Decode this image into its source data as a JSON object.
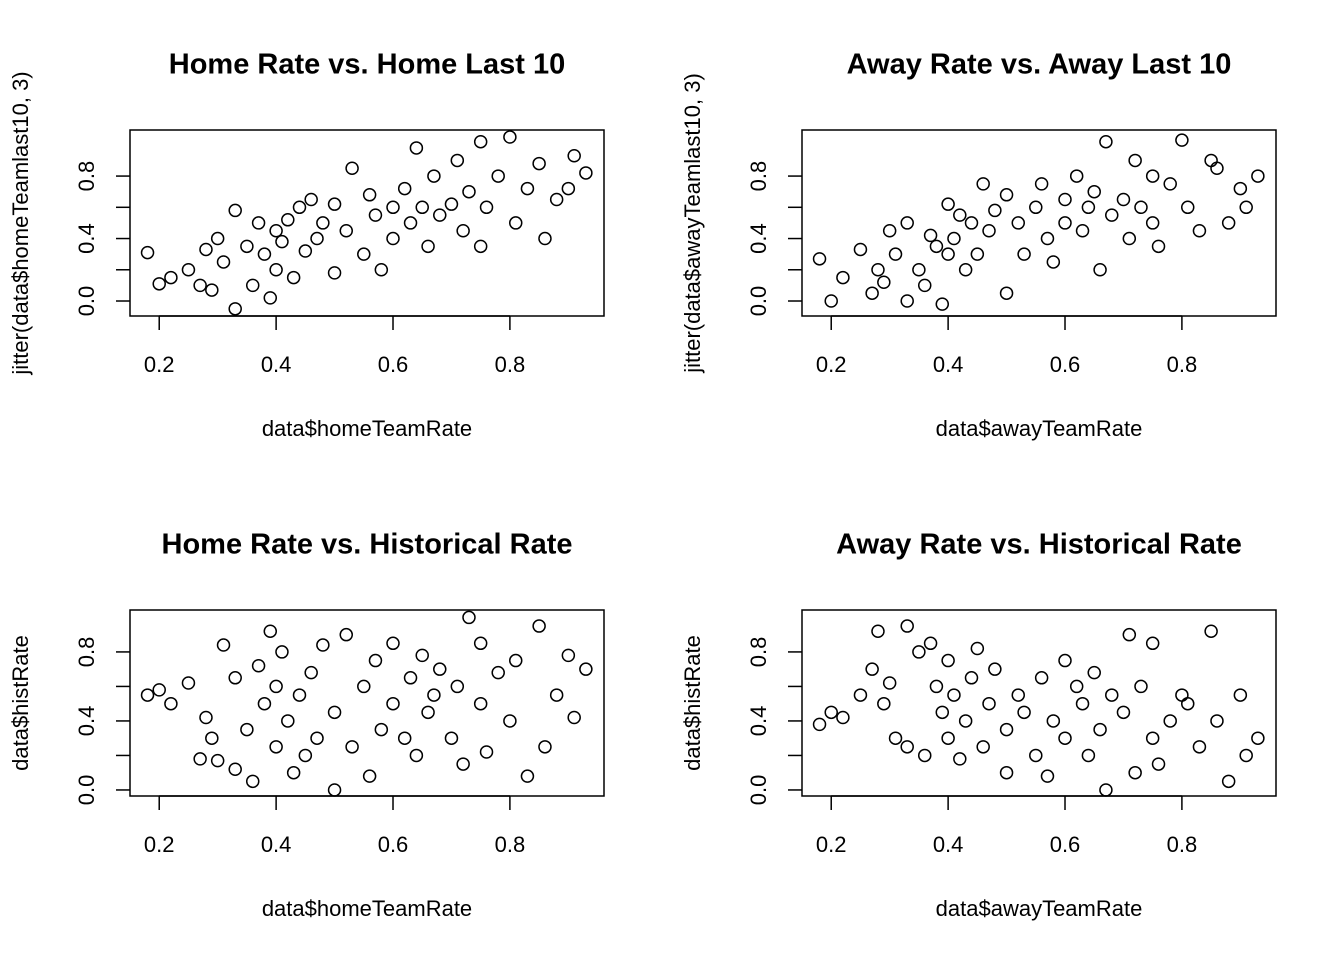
{
  "chart_data": [
    {
      "type": "scatter",
      "title": "Home Rate vs. Home Last 10",
      "x_label": "data$homeTeamRate",
      "y_label": "jitter(data$homeTeamlast10, 3)",
      "x": [
        0.18,
        0.2,
        0.22,
        0.25,
        0.27,
        0.28,
        0.29,
        0.3,
        0.31,
        0.33,
        0.33,
        0.35,
        0.36,
        0.37,
        0.38,
        0.39,
        0.4,
        0.4,
        0.41,
        0.42,
        0.43,
        0.44,
        0.45,
        0.46,
        0.47,
        0.48,
        0.5,
        0.5,
        0.52,
        0.53,
        0.55,
        0.56,
        0.57,
        0.58,
        0.6,
        0.6,
        0.62,
        0.63,
        0.64,
        0.65,
        0.66,
        0.67,
        0.68,
        0.7,
        0.71,
        0.72,
        0.73,
        0.75,
        0.75,
        0.76,
        0.78,
        0.8,
        0.81,
        0.83,
        0.85,
        0.86,
        0.88,
        0.9,
        0.91,
        0.93
      ],
      "y": [
        0.31,
        0.11,
        0.15,
        0.2,
        0.1,
        0.33,
        0.07,
        0.4,
        0.25,
        -0.05,
        0.58,
        0.35,
        0.1,
        0.5,
        0.3,
        0.02,
        0.2,
        0.45,
        0.38,
        0.52,
        0.15,
        0.6,
        0.32,
        0.65,
        0.4,
        0.5,
        0.18,
        0.62,
        0.45,
        0.85,
        0.3,
        0.68,
        0.55,
        0.2,
        0.6,
        0.4,
        0.72,
        0.5,
        0.98,
        0.6,
        0.35,
        0.8,
        0.55,
        0.62,
        0.9,
        0.45,
        0.7,
        1.02,
        0.35,
        0.6,
        0.8,
        1.05,
        0.5,
        0.72,
        0.88,
        0.4,
        0.65,
        0.72,
        0.93,
        0.82
      ],
      "xlim": [
        0.15,
        0.961
      ],
      "ylim": [
        -0.096,
        1.095
      ],
      "xticks": [
        0.2,
        0.4,
        0.6,
        0.8
      ],
      "yticks": [
        {
          "value": 0,
          "label": "0.0"
        },
        0.4,
        0.8
      ],
      "yticks_unlabeled": [
        0.2,
        0.6
      ],
      "color": "#000000"
    },
    {
      "type": "scatter",
      "title": "Away Rate vs. Away Last 10",
      "x_label": "data$awayTeamRate",
      "y_label": "jitter(data$awayTeamlast10, 3)",
      "x": [
        0.18,
        0.2,
        0.22,
        0.25,
        0.27,
        0.28,
        0.29,
        0.3,
        0.31,
        0.33,
        0.33,
        0.35,
        0.36,
        0.37,
        0.38,
        0.39,
        0.4,
        0.4,
        0.41,
        0.42,
        0.43,
        0.44,
        0.45,
        0.46,
        0.47,
        0.48,
        0.5,
        0.5,
        0.52,
        0.53,
        0.55,
        0.56,
        0.57,
        0.58,
        0.6,
        0.6,
        0.62,
        0.63,
        0.64,
        0.65,
        0.66,
        0.67,
        0.68,
        0.7,
        0.71,
        0.72,
        0.73,
        0.75,
        0.75,
        0.76,
        0.78,
        0.8,
        0.81,
        0.83,
        0.85,
        0.86,
        0.88,
        0.9,
        0.91,
        0.93
      ],
      "y": [
        0.27,
        0.0,
        0.15,
        0.33,
        0.05,
        0.2,
        0.12,
        0.45,
        0.3,
        0.0,
        0.5,
        0.2,
        0.1,
        0.42,
        0.35,
        -0.02,
        0.3,
        0.62,
        0.4,
        0.55,
        0.2,
        0.5,
        0.3,
        0.75,
        0.45,
        0.58,
        0.05,
        0.68,
        0.5,
        0.3,
        0.6,
        0.75,
        0.4,
        0.25,
        0.65,
        0.5,
        0.8,
        0.45,
        0.6,
        0.7,
        0.2,
        1.02,
        0.55,
        0.65,
        0.4,
        0.9,
        0.6,
        0.8,
        0.5,
        0.35,
        0.75,
        1.03,
        0.6,
        0.45,
        0.9,
        0.85,
        0.5,
        0.72,
        0.6,
        0.8
      ],
      "xlim": [
        0.15,
        0.961
      ],
      "ylim": [
        -0.096,
        1.095
      ],
      "xticks": [
        0.2,
        0.4,
        0.6,
        0.8
      ],
      "yticks": [
        {
          "value": 0,
          "label": "0.0"
        },
        0.4,
        0.8
      ],
      "yticks_unlabeled": [
        0.2,
        0.6
      ],
      "color": "#000000"
    },
    {
      "type": "scatter",
      "title": "Home Rate vs. Historical Rate",
      "x_label": "data$homeTeamRate",
      "y_label": "data$histRate",
      "x": [
        0.18,
        0.2,
        0.22,
        0.25,
        0.27,
        0.28,
        0.29,
        0.3,
        0.31,
        0.33,
        0.33,
        0.35,
        0.36,
        0.37,
        0.38,
        0.39,
        0.4,
        0.4,
        0.41,
        0.42,
        0.43,
        0.44,
        0.45,
        0.46,
        0.47,
        0.48,
        0.5,
        0.5,
        0.52,
        0.53,
        0.55,
        0.56,
        0.57,
        0.58,
        0.6,
        0.6,
        0.62,
        0.63,
        0.64,
        0.65,
        0.66,
        0.67,
        0.68,
        0.7,
        0.71,
        0.72,
        0.73,
        0.75,
        0.75,
        0.76,
        0.78,
        0.8,
        0.81,
        0.83,
        0.85,
        0.86,
        0.88,
        0.9,
        0.91,
        0.93
      ],
      "y": [
        0.55,
        0.58,
        0.5,
        0.62,
        0.18,
        0.42,
        0.3,
        0.17,
        0.84,
        0.12,
        0.65,
        0.35,
        0.05,
        0.72,
        0.5,
        0.92,
        0.25,
        0.6,
        0.8,
        0.4,
        0.1,
        0.55,
        0.2,
        0.68,
        0.3,
        0.84,
        0.0,
        0.45,
        0.9,
        0.25,
        0.6,
        0.08,
        0.75,
        0.35,
        0.5,
        0.85,
        0.3,
        0.65,
        0.2,
        0.78,
        0.45,
        0.55,
        0.7,
        0.3,
        0.6,
        0.15,
        1.0,
        0.5,
        0.85,
        0.22,
        0.68,
        0.4,
        0.75,
        0.08,
        0.95,
        0.25,
        0.55,
        0.78,
        0.42,
        0.7
      ],
      "xlim": [
        0.15,
        0.961
      ],
      "ylim": [
        -0.035,
        1.043
      ],
      "xticks": [
        0.2,
        0.4,
        0.6,
        0.8
      ],
      "yticks": [
        {
          "value": 0,
          "label": "0.0"
        },
        0.4,
        0.8
      ],
      "yticks_unlabeled": [
        0.2,
        0.6
      ],
      "color": "#000000"
    },
    {
      "type": "scatter",
      "title": "Away Rate vs. Historical Rate",
      "x_label": "data$awayTeamRate",
      "y_label": "data$histRate",
      "x": [
        0.18,
        0.2,
        0.22,
        0.25,
        0.27,
        0.28,
        0.29,
        0.3,
        0.31,
        0.33,
        0.33,
        0.35,
        0.36,
        0.37,
        0.38,
        0.39,
        0.4,
        0.4,
        0.41,
        0.42,
        0.43,
        0.44,
        0.45,
        0.46,
        0.47,
        0.48,
        0.5,
        0.5,
        0.52,
        0.53,
        0.55,
        0.56,
        0.57,
        0.58,
        0.6,
        0.6,
        0.62,
        0.63,
        0.64,
        0.65,
        0.66,
        0.67,
        0.68,
        0.7,
        0.71,
        0.72,
        0.73,
        0.75,
        0.75,
        0.76,
        0.78,
        0.8,
        0.81,
        0.83,
        0.85,
        0.86,
        0.88,
        0.9,
        0.91,
        0.93
      ],
      "y": [
        0.38,
        0.45,
        0.42,
        0.55,
        0.7,
        0.92,
        0.5,
        0.62,
        0.3,
        0.95,
        0.25,
        0.8,
        0.2,
        0.85,
        0.6,
        0.45,
        0.3,
        0.75,
        0.55,
        0.18,
        0.4,
        0.65,
        0.82,
        0.25,
        0.5,
        0.7,
        0.35,
        0.1,
        0.55,
        0.45,
        0.2,
        0.65,
        0.08,
        0.4,
        0.75,
        0.3,
        0.6,
        0.5,
        0.2,
        0.68,
        0.35,
        0.0,
        0.55,
        0.45,
        0.9,
        0.1,
        0.6,
        0.3,
        0.85,
        0.15,
        0.4,
        0.55,
        0.5,
        0.25,
        0.92,
        0.4,
        0.05,
        0.55,
        0.2,
        0.3
      ],
      "xlim": [
        0.15,
        0.961
      ],
      "ylim": [
        -0.035,
        1.043
      ],
      "xticks": [
        0.2,
        0.4,
        0.6,
        0.8
      ],
      "yticks": [
        {
          "value": 0,
          "label": "0.0"
        },
        0.4,
        0.8
      ],
      "yticks_unlabeled": [
        0.2,
        0.6
      ],
      "color": "#000000"
    }
  ]
}
